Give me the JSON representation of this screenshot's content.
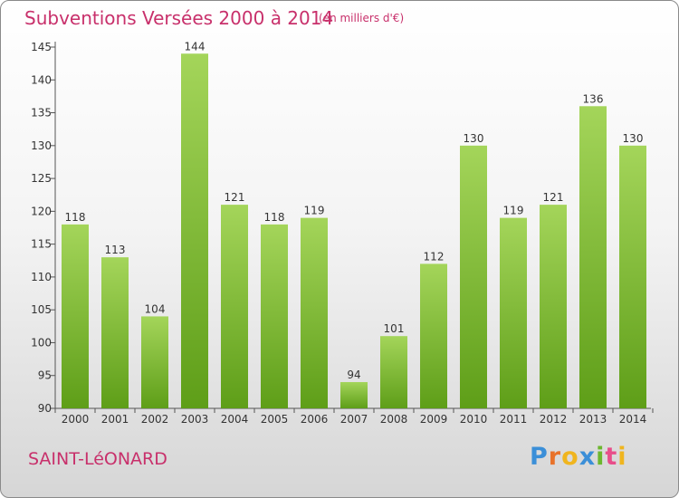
{
  "title": "Subventions Versées 2000 à 2014",
  "unit_note": "(en milliers d'€)",
  "commune": "SAINT-LéONARD",
  "logo": {
    "letters": [
      "P",
      "r",
      "o",
      "x",
      "i",
      "t",
      "i"
    ],
    "colors": [
      "#3b8fd8",
      "#e8722a",
      "#f0b51e",
      "#3b8fd8",
      "#6cb72e",
      "#e84e8a",
      "#f0b51e"
    ]
  },
  "colors": {
    "bar_top": "#a4d55a",
    "bar_bottom": "#5e9e18",
    "accent": "#c8306b"
  },
  "chart_data": {
    "type": "bar",
    "categories": [
      "2000",
      "2001",
      "2002",
      "2003",
      "2004",
      "2005",
      "2006",
      "2007",
      "2008",
      "2009",
      "2010",
      "2011",
      "2012",
      "2013",
      "2014"
    ],
    "values": [
      118,
      113,
      104,
      144,
      121,
      118,
      119,
      94,
      101,
      112,
      130,
      119,
      121,
      136,
      130
    ],
    "ylim": [
      90,
      145
    ],
    "yticks": [
      90,
      95,
      100,
      105,
      110,
      115,
      120,
      125,
      130,
      135,
      140,
      145
    ],
    "grid": false,
    "legend": "none"
  }
}
